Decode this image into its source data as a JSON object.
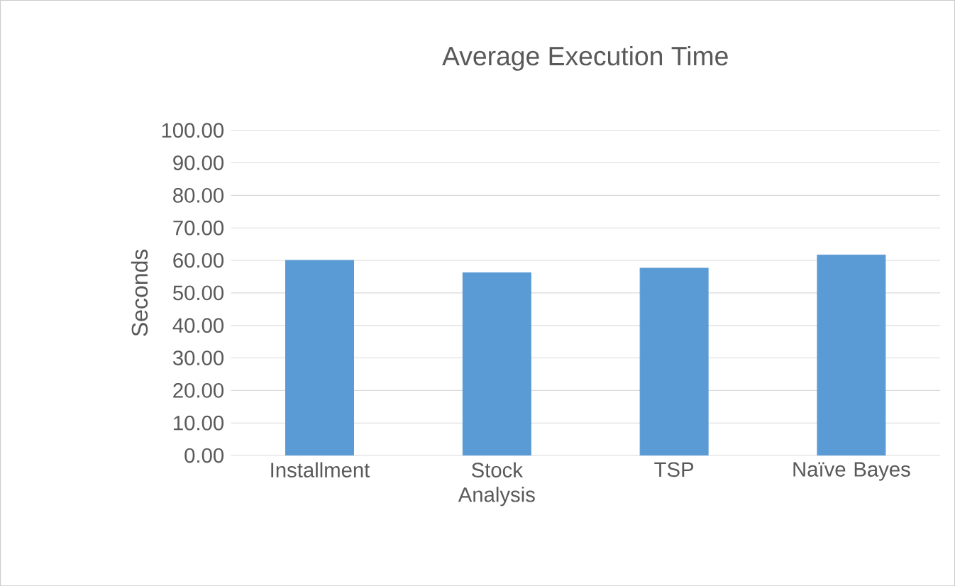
{
  "chart_data": {
    "type": "bar",
    "title": "Average Execution Time",
    "ylabel": "Seconds",
    "categories": [
      "Installment",
      "Stock Analysis",
      "TSP",
      "Naïve Bayes"
    ],
    "values": [
      60.0,
      56.2,
      57.6,
      61.7
    ],
    "color": "#5b9bd5",
    "ylim": [
      0,
      100
    ],
    "yticks": [
      {
        "value": 0,
        "label": "0.00"
      },
      {
        "value": 10,
        "label": "10.00"
      },
      {
        "value": 20,
        "label": "20.00"
      },
      {
        "value": 30,
        "label": "30.00"
      },
      {
        "value": 40,
        "label": "40.00"
      },
      {
        "value": 50,
        "label": "50.00"
      },
      {
        "value": 60,
        "label": "60.00"
      },
      {
        "value": 70,
        "label": "70.00"
      },
      {
        "value": 80,
        "label": "80.00"
      },
      {
        "value": 90,
        "label": "90.00"
      },
      {
        "value": 100,
        "label": "100.00"
      }
    ],
    "grid": "y"
  }
}
